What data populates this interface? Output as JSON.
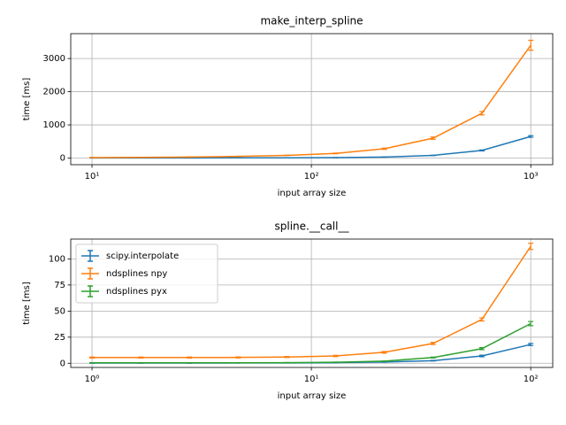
{
  "chart_data": [
    {
      "type": "line",
      "title": "make_interp_spline",
      "xlabel": "input array size",
      "ylabel": "time [ms]",
      "x": [
        10,
        16.7,
        27.8,
        46.4,
        77.4,
        129,
        215,
        359,
        599,
        1000
      ],
      "series": [
        {
          "name": "scipy.interpolate",
          "color": "#1f77b4",
          "values": [
            3,
            4,
            5,
            6,
            7,
            12,
            30,
            80,
            230,
            650
          ],
          "errors": [
            1,
            1,
            1,
            1,
            1,
            2,
            3,
            6,
            15,
            25
          ]
        },
        {
          "name": "ndsplines npy",
          "color": "#ff7f0e",
          "values": [
            15,
            20,
            30,
            50,
            80,
            140,
            280,
            600,
            1350,
            3400
          ],
          "errors": [
            2,
            2,
            3,
            4,
            6,
            10,
            20,
            35,
            50,
            150
          ]
        }
      ],
      "xscale": "log",
      "xlim": [
        8,
        1259
      ],
      "xticks": [
        {
          "value": 10,
          "label": "10¹"
        },
        {
          "value": 100,
          "label": "10²"
        },
        {
          "value": 1000,
          "label": "10³"
        }
      ],
      "ylim": [
        -200,
        3750
      ],
      "yticks": [
        0,
        1000,
        2000,
        3000
      ],
      "grid": true
    },
    {
      "type": "line",
      "title": "spline.__call__",
      "xlabel": "input array size",
      "ylabel": "time [ms]",
      "x": [
        1,
        1.67,
        2.78,
        4.64,
        7.74,
        12.9,
        21.5,
        35.9,
        59.9,
        100
      ],
      "series": [
        {
          "name": "scipy.interpolate",
          "color": "#1f77b4",
          "values": [
            0.2,
            0.2,
            0.2,
            0.3,
            0.4,
            0.6,
            1.2,
            2.5,
            7,
            18
          ],
          "errors": [
            0.1,
            0.1,
            0.1,
            0.1,
            0.1,
            0.1,
            0.2,
            0.3,
            0.8,
            1
          ]
        },
        {
          "name": "ndsplines npy",
          "color": "#ff7f0e",
          "values": [
            5.5,
            5.5,
            5.5,
            5.6,
            6,
            7,
            10.5,
            19,
            42,
            112
          ],
          "errors": [
            0.5,
            0.5,
            0.5,
            0.5,
            0.5,
            0.6,
            0.8,
            1,
            1.5,
            3
          ]
        },
        {
          "name": "ndsplines pyx",
          "color": "#2ca02c",
          "values": [
            0.5,
            0.5,
            0.5,
            0.5,
            0.6,
            1,
            2,
            5.5,
            14,
            38
          ],
          "errors": [
            0.1,
            0.1,
            0.1,
            0.1,
            0.1,
            0.1,
            0.2,
            0.4,
            1,
            2
          ]
        }
      ],
      "xscale": "log",
      "xlim": [
        0.8,
        126
      ],
      "xticks": [
        {
          "value": 1,
          "label": "10⁰"
        },
        {
          "value": 10,
          "label": "10¹"
        },
        {
          "value": 100,
          "label": "10²"
        }
      ],
      "ylim": [
        -4,
        119
      ],
      "yticks": [
        0,
        25,
        50,
        75,
        100
      ],
      "grid": true,
      "legend": "upper left"
    }
  ]
}
